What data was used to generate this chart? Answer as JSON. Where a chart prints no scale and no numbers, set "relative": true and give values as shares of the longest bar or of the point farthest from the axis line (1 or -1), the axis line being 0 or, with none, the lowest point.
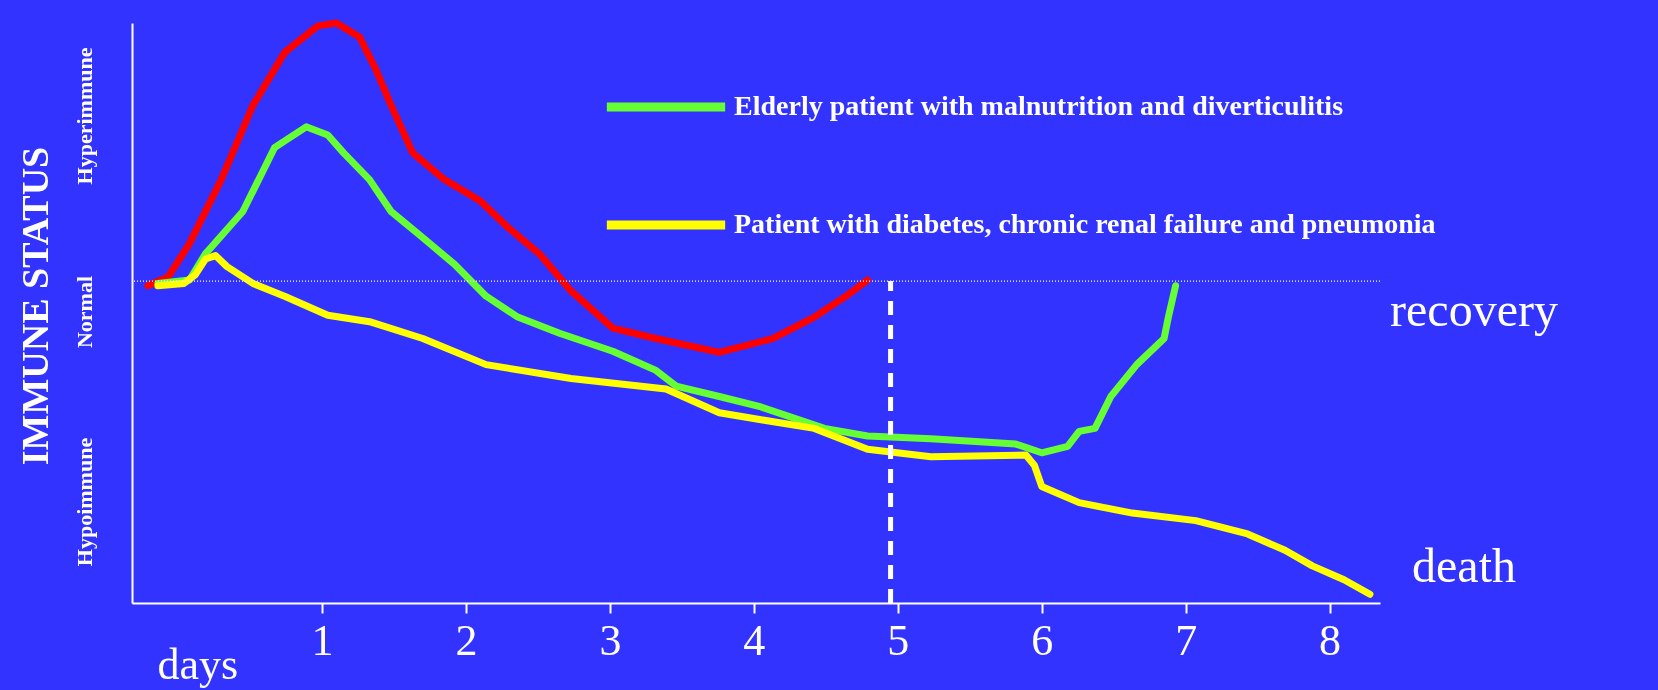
{
  "chart_data": {
    "type": "line",
    "relative": true,
    "xlabel": "days",
    "ylabel": "IMMUNE STATUS",
    "xlim": [
      -0.32,
      8.35
    ],
    "xticks": [
      1,
      2,
      3,
      4,
      5,
      6,
      7,
      8
    ],
    "legend": "top right",
    "line_style": "solid",
    "marker": "none",
    "annotations": [
      "Hyperimmune",
      "Normal",
      "Hypoimmune",
      "recovery",
      "death"
    ],
    "ref_lines": [
      {
        "axis": "y",
        "value": 0.555,
        "color": "#ffffff",
        "line_style": "dotted"
      },
      {
        "axis": "x",
        "value": 4.95,
        "color": "#ffffff",
        "line_style": "dashed"
      }
    ],
    "series": [
      {
        "color": "#ff0000",
        "x": [
          -0.21,
          -0.07,
          0.08,
          0.3,
          0.52,
          0.74,
          0.97,
          1.1,
          1.26,
          1.37,
          1.48,
          1.63,
          1.85,
          2.1,
          2.29,
          2.51,
          2.73,
          3.02,
          3.32,
          3.76,
          4.13,
          4.42,
          4.64,
          4.79
        ],
        "values": [
          0.547,
          0.562,
          0.62,
          0.73,
          0.858,
          0.949,
          0.995,
          1.0,
          0.976,
          0.922,
          0.858,
          0.776,
          0.73,
          0.693,
          0.648,
          0.602,
          0.538,
          0.474,
          0.456,
          0.432,
          0.456,
          0.493,
          0.529,
          0.557
        ]
      },
      {
        "name": "Elderly patient with malnutrition and diverticulitis",
        "color": "#66ff33",
        "x": [
          -0.14,
          0.08,
          0.19,
          0.45,
          0.67,
          0.89,
          1.04,
          1.15,
          1.33,
          1.48,
          1.7,
          1.92,
          2.14,
          2.36,
          2.65,
          3.02,
          3.32,
          3.46,
          3.76,
          4.05,
          4.49,
          4.79,
          5.23,
          5.82,
          6.0,
          6.18,
          6.26,
          6.37,
          6.48,
          6.66,
          6.85,
          6.88,
          6.93
        ],
        "values": [
          0.551,
          0.557,
          0.602,
          0.675,
          0.785,
          0.821,
          0.807,
          0.776,
          0.73,
          0.675,
          0.63,
          0.584,
          0.529,
          0.493,
          0.465,
          0.434,
          0.401,
          0.374,
          0.356,
          0.338,
          0.301,
          0.288,
          0.283,
          0.274,
          0.259,
          0.27,
          0.296,
          0.301,
          0.356,
          0.411,
          0.456,
          0.493,
          0.547
        ]
      },
      {
        "name": "Patient with diabetes, chronic renal failure and pneumonia",
        "color": "#ffff00",
        "x": [
          -0.14,
          0.04,
          0.12,
          0.19,
          0.26,
          0.34,
          0.52,
          0.74,
          1.04,
          1.33,
          1.7,
          2.14,
          2.73,
          3.39,
          3.76,
          4.05,
          4.42,
          4.79,
          5.23,
          5.89,
          5.95,
          6.0,
          6.26,
          6.63,
          7.07,
          7.43,
          7.69,
          7.88,
          8.1,
          8.28
        ],
        "values": [
          0.547,
          0.551,
          0.566,
          0.593,
          0.599,
          0.58,
          0.551,
          0.529,
          0.496,
          0.485,
          0.456,
          0.411,
          0.387,
          0.369,
          0.328,
          0.316,
          0.301,
          0.265,
          0.252,
          0.255,
          0.237,
          0.201,
          0.173,
          0.155,
          0.142,
          0.119,
          0.091,
          0.064,
          0.04,
          0.015
        ]
      }
    ]
  }
}
